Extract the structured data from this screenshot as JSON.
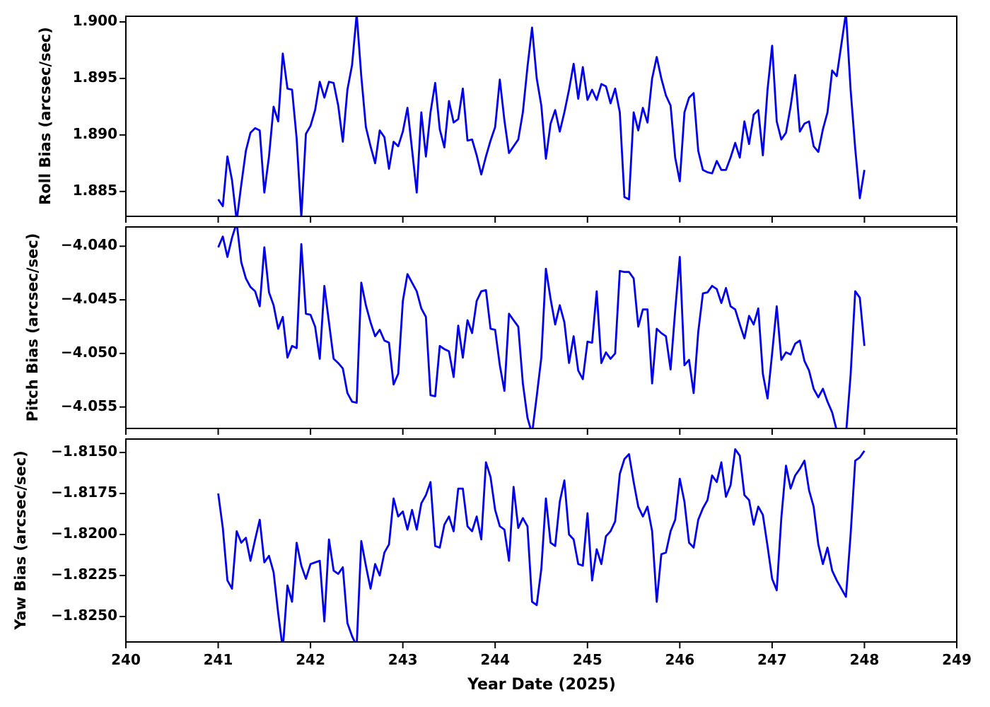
{
  "figure": {
    "background": "#ffffff",
    "axis_color": "#000000",
    "line_color": "#0000ee"
  },
  "x_axis": {
    "label": "Year Date (2025)",
    "xlim": [
      240,
      249
    ],
    "ticks": [
      240,
      241,
      242,
      243,
      244,
      245,
      246,
      247,
      248,
      249
    ],
    "tick_labels": [
      "240",
      "241",
      "242",
      "243",
      "244",
      "245",
      "246",
      "247",
      "248",
      "249"
    ]
  },
  "chart_data": [
    {
      "type": "line",
      "ylabel": "Roll Bias (arcsec/sec)",
      "ylim": [
        1.8828,
        1.9005
      ],
      "yticks": [
        1.9,
        1.895,
        1.89,
        1.885
      ],
      "ytick_labels": [
        "1.900",
        "1.895",
        "1.890",
        "1.885"
      ],
      "x_start": 241.0,
      "x_step": 0.05,
      "values": [
        1.8843,
        1.8837,
        1.8881,
        1.886,
        1.8824,
        1.8856,
        1.8886,
        1.8902,
        1.8906,
        1.8904,
        1.8849,
        1.8881,
        1.8925,
        1.8912,
        1.8972,
        1.8941,
        1.894,
        1.8897,
        1.8827,
        1.8901,
        1.8908,
        1.8922,
        1.8947,
        1.8933,
        1.8947,
        1.8946,
        1.8926,
        1.8894,
        1.894,
        1.8962,
        1.9007,
        1.8952,
        1.8907,
        1.889,
        1.8875,
        1.8904,
        1.8898,
        1.887,
        1.8894,
        1.889,
        1.8903,
        1.8924,
        1.8887,
        1.8849,
        1.892,
        1.8881,
        1.892,
        1.8946,
        1.8905,
        1.8889,
        1.893,
        1.8911,
        1.8914,
        1.8941,
        1.8895,
        1.8896,
        1.8882,
        1.8865,
        1.8881,
        1.8895,
        1.8907,
        1.8949,
        1.8913,
        1.8884,
        1.889,
        1.8896,
        1.892,
        1.896,
        1.8995,
        1.895,
        1.8926,
        1.8879,
        1.891,
        1.8922,
        1.8903,
        1.892,
        1.894,
        1.8963,
        1.8932,
        1.896,
        1.8931,
        1.894,
        1.8931,
        1.8945,
        1.8943,
        1.8928,
        1.8941,
        1.892,
        1.8845,
        1.8843,
        1.892,
        1.8904,
        1.8924,
        1.8911,
        1.895,
        1.8969,
        1.895,
        1.8935,
        1.8926,
        1.888,
        1.8859,
        1.892,
        1.8933,
        1.8937,
        1.8886,
        1.8869,
        1.8867,
        1.8866,
        1.8877,
        1.8869,
        1.8869,
        1.888,
        1.8893,
        1.888,
        1.8912,
        1.8892,
        1.8918,
        1.8922,
        1.8882,
        1.894,
        1.8979,
        1.8912,
        1.8896,
        1.8902,
        1.8925,
        1.8953,
        1.8903,
        1.891,
        1.8912,
        1.889,
        1.8885,
        1.8905,
        1.892,
        1.8957,
        1.8952,
        1.898,
        1.9008,
        1.894,
        1.8888,
        1.8844,
        1.8869
      ]
    },
    {
      "type": "line",
      "ylabel": "Pitch Bias (arcsec/sec)",
      "ylim": [
        -4.057,
        -4.0382
      ],
      "yticks": [
        -4.04,
        -4.045,
        -4.05,
        -4.055
      ],
      "ytick_labels": [
        "−4.040",
        "−4.045",
        "−4.050",
        "−4.055"
      ],
      "x_start": 241.0,
      "x_step": 0.05,
      "values": [
        -4.0401,
        -4.0391,
        -4.041,
        -4.0392,
        -4.0378,
        -4.0415,
        -4.043,
        -4.0438,
        -4.0442,
        -4.0456,
        -4.0401,
        -4.0443,
        -4.0455,
        -4.0477,
        -4.0466,
        -4.0504,
        -4.0493,
        -4.0495,
        -4.0398,
        -4.0463,
        -4.0464,
        -4.0475,
        -4.0505,
        -4.0437,
        -4.0471,
        -4.0505,
        -4.0509,
        -4.0514,
        -4.0537,
        -4.0545,
        -4.0546,
        -4.0434,
        -4.0455,
        -4.0471,
        -4.0484,
        -4.0478,
        -4.0488,
        -4.049,
        -4.0529,
        -4.0519,
        -4.0451,
        -4.0426,
        -4.0434,
        -4.0442,
        -4.0458,
        -4.0466,
        -4.0539,
        -4.054,
        -4.0493,
        -4.0496,
        -4.0498,
        -4.0522,
        -4.0474,
        -4.0504,
        -4.0469,
        -4.0481,
        -4.0451,
        -4.0442,
        -4.0441,
        -4.0477,
        -4.0478,
        -4.0511,
        -4.0535,
        -4.0463,
        -4.0469,
        -4.0475,
        -4.0528,
        -4.056,
        -4.0575,
        -4.054,
        -4.0504,
        -4.0421,
        -4.0449,
        -4.0473,
        -4.0455,
        -4.0471,
        -4.0509,
        -4.0484,
        -4.0516,
        -4.0524,
        -4.0489,
        -4.049,
        -4.0442,
        -4.0509,
        -4.0499,
        -4.0505,
        -4.05,
        -4.0423,
        -4.0424,
        -4.0424,
        -4.043,
        -4.0475,
        -4.0459,
        -4.0459,
        -4.0528,
        -4.0477,
        -4.0481,
        -4.0484,
        -4.0515,
        -4.046,
        -4.041,
        -4.0511,
        -4.0506,
        -4.0537,
        -4.048,
        -4.0444,
        -4.0443,
        -4.0437,
        -4.044,
        -4.0453,
        -4.0439,
        -4.0456,
        -4.0459,
        -4.0473,
        -4.0486,
        -4.0465,
        -4.0473,
        -4.0458,
        -4.0519,
        -4.0542,
        -4.05,
        -4.0456,
        -4.0506,
        -4.0499,
        -4.0501,
        -4.0491,
        -4.0488,
        -4.0507,
        -4.0516,
        -4.0533,
        -4.0541,
        -4.0533,
        -4.0545,
        -4.0555,
        -4.0572,
        -4.058,
        -4.0576,
        -4.052,
        -4.0442,
        -4.0448,
        -4.0493
      ]
    },
    {
      "type": "line",
      "ylabel": "Yaw Bias (arcsec/sec)",
      "ylim": [
        -1.82655,
        -1.81418
      ],
      "yticks": [
        -1.815,
        -1.8175,
        -1.82,
        -1.8225,
        -1.825
      ],
      "ytick_labels": [
        "−1.8150",
        "−1.8175",
        "−1.8200",
        "−1.8225",
        "−1.8250"
      ],
      "x_start": 241.0,
      "x_step": 0.05,
      "values": [
        -1.8175,
        -1.8196,
        -1.8228,
        -1.8233,
        -1.8198,
        -1.8205,
        -1.8202,
        -1.8216,
        -1.8203,
        -1.8191,
        -1.8217,
        -1.8213,
        -1.8223,
        -1.8248,
        -1.827,
        -1.8231,
        -1.8241,
        -1.8205,
        -1.8219,
        -1.8227,
        -1.8218,
        -1.8217,
        -1.8216,
        -1.8253,
        -1.8203,
        -1.8222,
        -1.8224,
        -1.822,
        -1.8254,
        -1.8262,
        -1.8268,
        -1.8204,
        -1.8219,
        -1.8233,
        -1.8218,
        -1.8225,
        -1.8211,
        -1.8206,
        -1.8178,
        -1.8189,
        -1.8186,
        -1.8197,
        -1.8185,
        -1.8197,
        -1.8181,
        -1.8176,
        -1.8168,
        -1.8207,
        -1.8208,
        -1.8194,
        -1.8189,
        -1.8198,
        -1.8172,
        -1.8172,
        -1.8195,
        -1.8198,
        -1.8189,
        -1.8203,
        -1.8156,
        -1.8165,
        -1.8185,
        -1.8195,
        -1.8197,
        -1.8216,
        -1.8171,
        -1.8196,
        -1.819,
        -1.8195,
        -1.8241,
        -1.8243,
        -1.8221,
        -1.8178,
        -1.8205,
        -1.8207,
        -1.818,
        -1.8167,
        -1.82,
        -1.8203,
        -1.8218,
        -1.8219,
        -1.8187,
        -1.8228,
        -1.8209,
        -1.8218,
        -1.8201,
        -1.8198,
        -1.8192,
        -1.8163,
        -1.8154,
        -1.8151,
        -1.8168,
        -1.8183,
        -1.8189,
        -1.8183,
        -1.8198,
        -1.8241,
        -1.8212,
        -1.8211,
        -1.8198,
        -1.8191,
        -1.8166,
        -1.818,
        -1.8205,
        -1.8208,
        -1.8191,
        -1.8184,
        -1.8179,
        -1.8164,
        -1.8168,
        -1.8156,
        -1.8177,
        -1.817,
        -1.8148,
        -1.8152,
        -1.8176,
        -1.8179,
        -1.8194,
        -1.8183,
        -1.8188,
        -1.8207,
        -1.8227,
        -1.8234,
        -1.819,
        -1.8158,
        -1.8172,
        -1.8164,
        -1.816,
        -1.8155,
        -1.8173,
        -1.8183,
        -1.8206,
        -1.8218,
        -1.8208,
        -1.8222,
        -1.8228,
        -1.8233,
        -1.8238,
        -1.82,
        -1.8155,
        -1.8153,
        -1.8149
      ]
    }
  ]
}
